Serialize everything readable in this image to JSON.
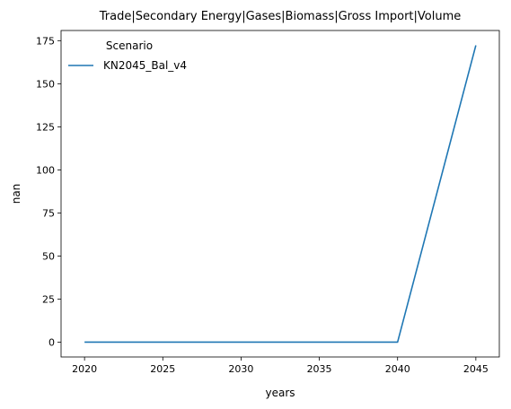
{
  "chart_data": {
    "type": "line",
    "title": "Trade|Secondary Energy|Gases|Biomass|Gross Import|Volume",
    "xlabel": "years",
    "ylabel": "nan",
    "xlim": [
      2018.5,
      2046.5
    ],
    "ylim": [
      -8.6,
      180.9
    ],
    "xticks": [
      2020,
      2025,
      2030,
      2035,
      2040,
      2045
    ],
    "yticks": [
      0,
      25,
      50,
      75,
      100,
      125,
      150,
      175
    ],
    "grid": false,
    "legend": {
      "title": "Scenario",
      "placement": "top-left"
    },
    "series": [
      {
        "name": "KN2045_Bal_v4",
        "color": "#1f77b4",
        "x": [
          2020,
          2025,
          2030,
          2035,
          2040,
          2045
        ],
        "y": [
          0,
          0,
          0,
          0,
          0,
          172.3
        ]
      }
    ]
  }
}
